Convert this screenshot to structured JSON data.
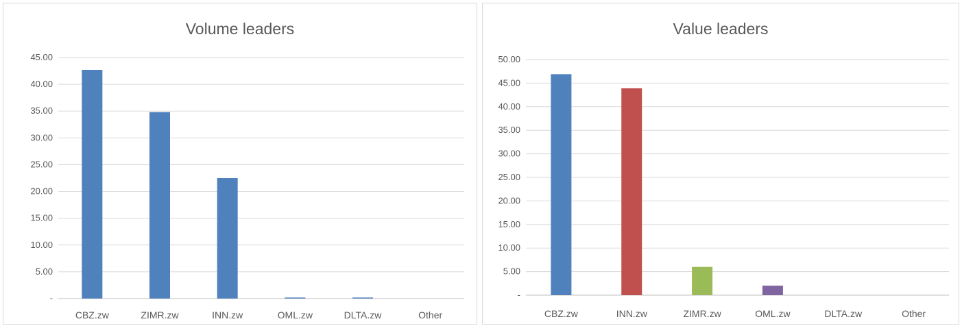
{
  "chart_data": [
    {
      "type": "bar",
      "title": "Volume leaders",
      "categories": [
        "CBZ.zw",
        "ZIMR.zw",
        "INN.zw",
        "OML.zw",
        "DLTA.zw",
        "Other"
      ],
      "values": [
        42.7,
        34.8,
        22.5,
        0.2,
        0.2,
        0
      ],
      "ylim": [
        0,
        45
      ],
      "yticks": [
        0,
        5,
        10,
        15,
        20,
        25,
        30,
        35,
        40,
        45
      ],
      "ytick_labels": [
        "-",
        "5.00",
        "10.00",
        "15.00",
        "20.00",
        "25.00",
        "30.00",
        "35.00",
        "40.00",
        "45.00"
      ],
      "grid": true,
      "legend": "none",
      "colors": [
        "#4f81bd",
        "#4f81bd",
        "#4f81bd",
        "#4f81bd",
        "#4f81bd",
        "#4f81bd"
      ]
    },
    {
      "type": "bar",
      "title": "Value leaders",
      "categories": [
        "CBZ.zw",
        "INN.zw",
        "ZIMR.zw",
        "OML.zw",
        "DLTA.zw",
        "Other"
      ],
      "values": [
        46.9,
        43.9,
        6.0,
        2.0,
        0,
        0
      ],
      "ylim": [
        0,
        50
      ],
      "yticks": [
        0,
        5,
        10,
        15,
        20,
        25,
        30,
        35,
        40,
        45,
        50
      ],
      "ytick_labels": [
        "-",
        "5.00",
        "10.00",
        "15.00",
        "20.00",
        "25.00",
        "30.00",
        "35.00",
        "40.00",
        "45.00",
        "50.00"
      ],
      "grid": true,
      "legend": "none",
      "colors": [
        "#4f81bd",
        "#c0504d",
        "#9bbb59",
        "#8064a2",
        "#4bacc6",
        "#f79646"
      ]
    }
  ]
}
